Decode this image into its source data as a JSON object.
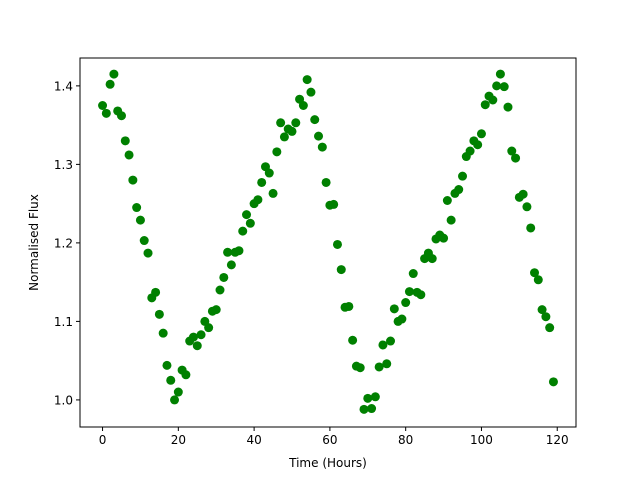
{
  "chart_data": {
    "type": "scatter",
    "title": "",
    "xlabel": "Time (Hours)",
    "ylabel": "Normalised Flux",
    "xlim": [
      -5.95,
      124.95
    ],
    "ylim": [
      0.9655,
      1.4355
    ],
    "xticks": [
      0,
      20,
      40,
      60,
      80,
      100,
      120
    ],
    "xtick_labels": [
      "0",
      "20",
      "40",
      "60",
      "80",
      "100",
      "120"
    ],
    "yticks": [
      1.0,
      1.1,
      1.2,
      1.3,
      1.4
    ],
    "ytick_labels": [
      "1.0",
      "1.1",
      "1.2",
      "1.3",
      "1.4"
    ],
    "grid": false,
    "legend": null,
    "marker_color": "#008000",
    "series": [
      {
        "x": [
          0,
          1,
          2,
          3,
          4,
          5,
          6,
          7,
          8,
          9,
          10,
          11,
          12,
          13,
          14,
          15,
          16,
          17,
          18,
          19,
          20,
          21,
          22,
          23,
          24,
          25,
          26,
          27,
          28,
          29,
          30,
          31,
          32,
          33,
          34,
          35,
          36,
          37,
          38,
          39,
          40,
          41,
          42,
          43,
          44,
          45,
          46,
          47,
          48,
          49,
          50,
          51,
          52,
          53,
          54,
          55,
          56,
          57,
          58,
          59,
          60,
          61,
          62,
          63,
          64,
          65,
          66,
          67,
          68,
          69,
          70,
          71,
          72,
          73,
          74,
          75,
          76,
          77,
          78,
          79,
          80,
          81,
          82,
          83,
          84,
          85,
          86,
          87,
          88,
          89,
          90,
          91,
          92,
          93,
          94,
          95,
          96,
          97,
          98,
          99,
          100,
          101,
          102,
          103,
          104,
          105,
          106,
          107,
          108,
          109,
          110,
          111,
          112,
          113,
          114,
          115,
          116,
          117,
          118,
          119
        ],
        "y": [
          1.375,
          1.365,
          1.402,
          1.415,
          1.368,
          1.362,
          1.33,
          1.312,
          1.28,
          1.245,
          1.229,
          1.203,
          1.187,
          1.13,
          1.137,
          1.109,
          1.085,
          1.044,
          1.025,
          1.0,
          1.01,
          1.038,
          1.032,
          1.075,
          1.08,
          1.069,
          1.083,
          1.1,
          1.092,
          1.113,
          1.115,
          1.14,
          1.156,
          1.188,
          1.172,
          1.188,
          1.19,
          1.215,
          1.236,
          1.225,
          1.25,
          1.255,
          1.277,
          1.297,
          1.289,
          1.263,
          1.316,
          1.353,
          1.335,
          1.345,
          1.342,
          1.353,
          1.383,
          1.375,
          1.408,
          1.392,
          1.357,
          1.336,
          1.322,
          1.277,
          1.248,
          1.249,
          1.198,
          1.166,
          1.118,
          1.119,
          1.076,
          1.043,
          1.041,
          0.988,
          1.002,
          0.989,
          1.004,
          1.042,
          1.07,
          1.046,
          1.075,
          1.116,
          1.1,
          1.103,
          1.124,
          1.138,
          1.161,
          1.137,
          1.134,
          1.18,
          1.187,
          1.18,
          1.205,
          1.21,
          1.206,
          1.254,
          1.229,
          1.263,
          1.268,
          1.285,
          1.31,
          1.317,
          1.33,
          1.325,
          1.339,
          1.376,
          1.387,
          1.382,
          1.4,
          1.415,
          1.399,
          1.373,
          1.317,
          1.308,
          1.258,
          1.262,
          1.246,
          1.219,
          1.162,
          1.153,
          1.115,
          1.106,
          1.092,
          1.023
        ]
      }
    ]
  }
}
